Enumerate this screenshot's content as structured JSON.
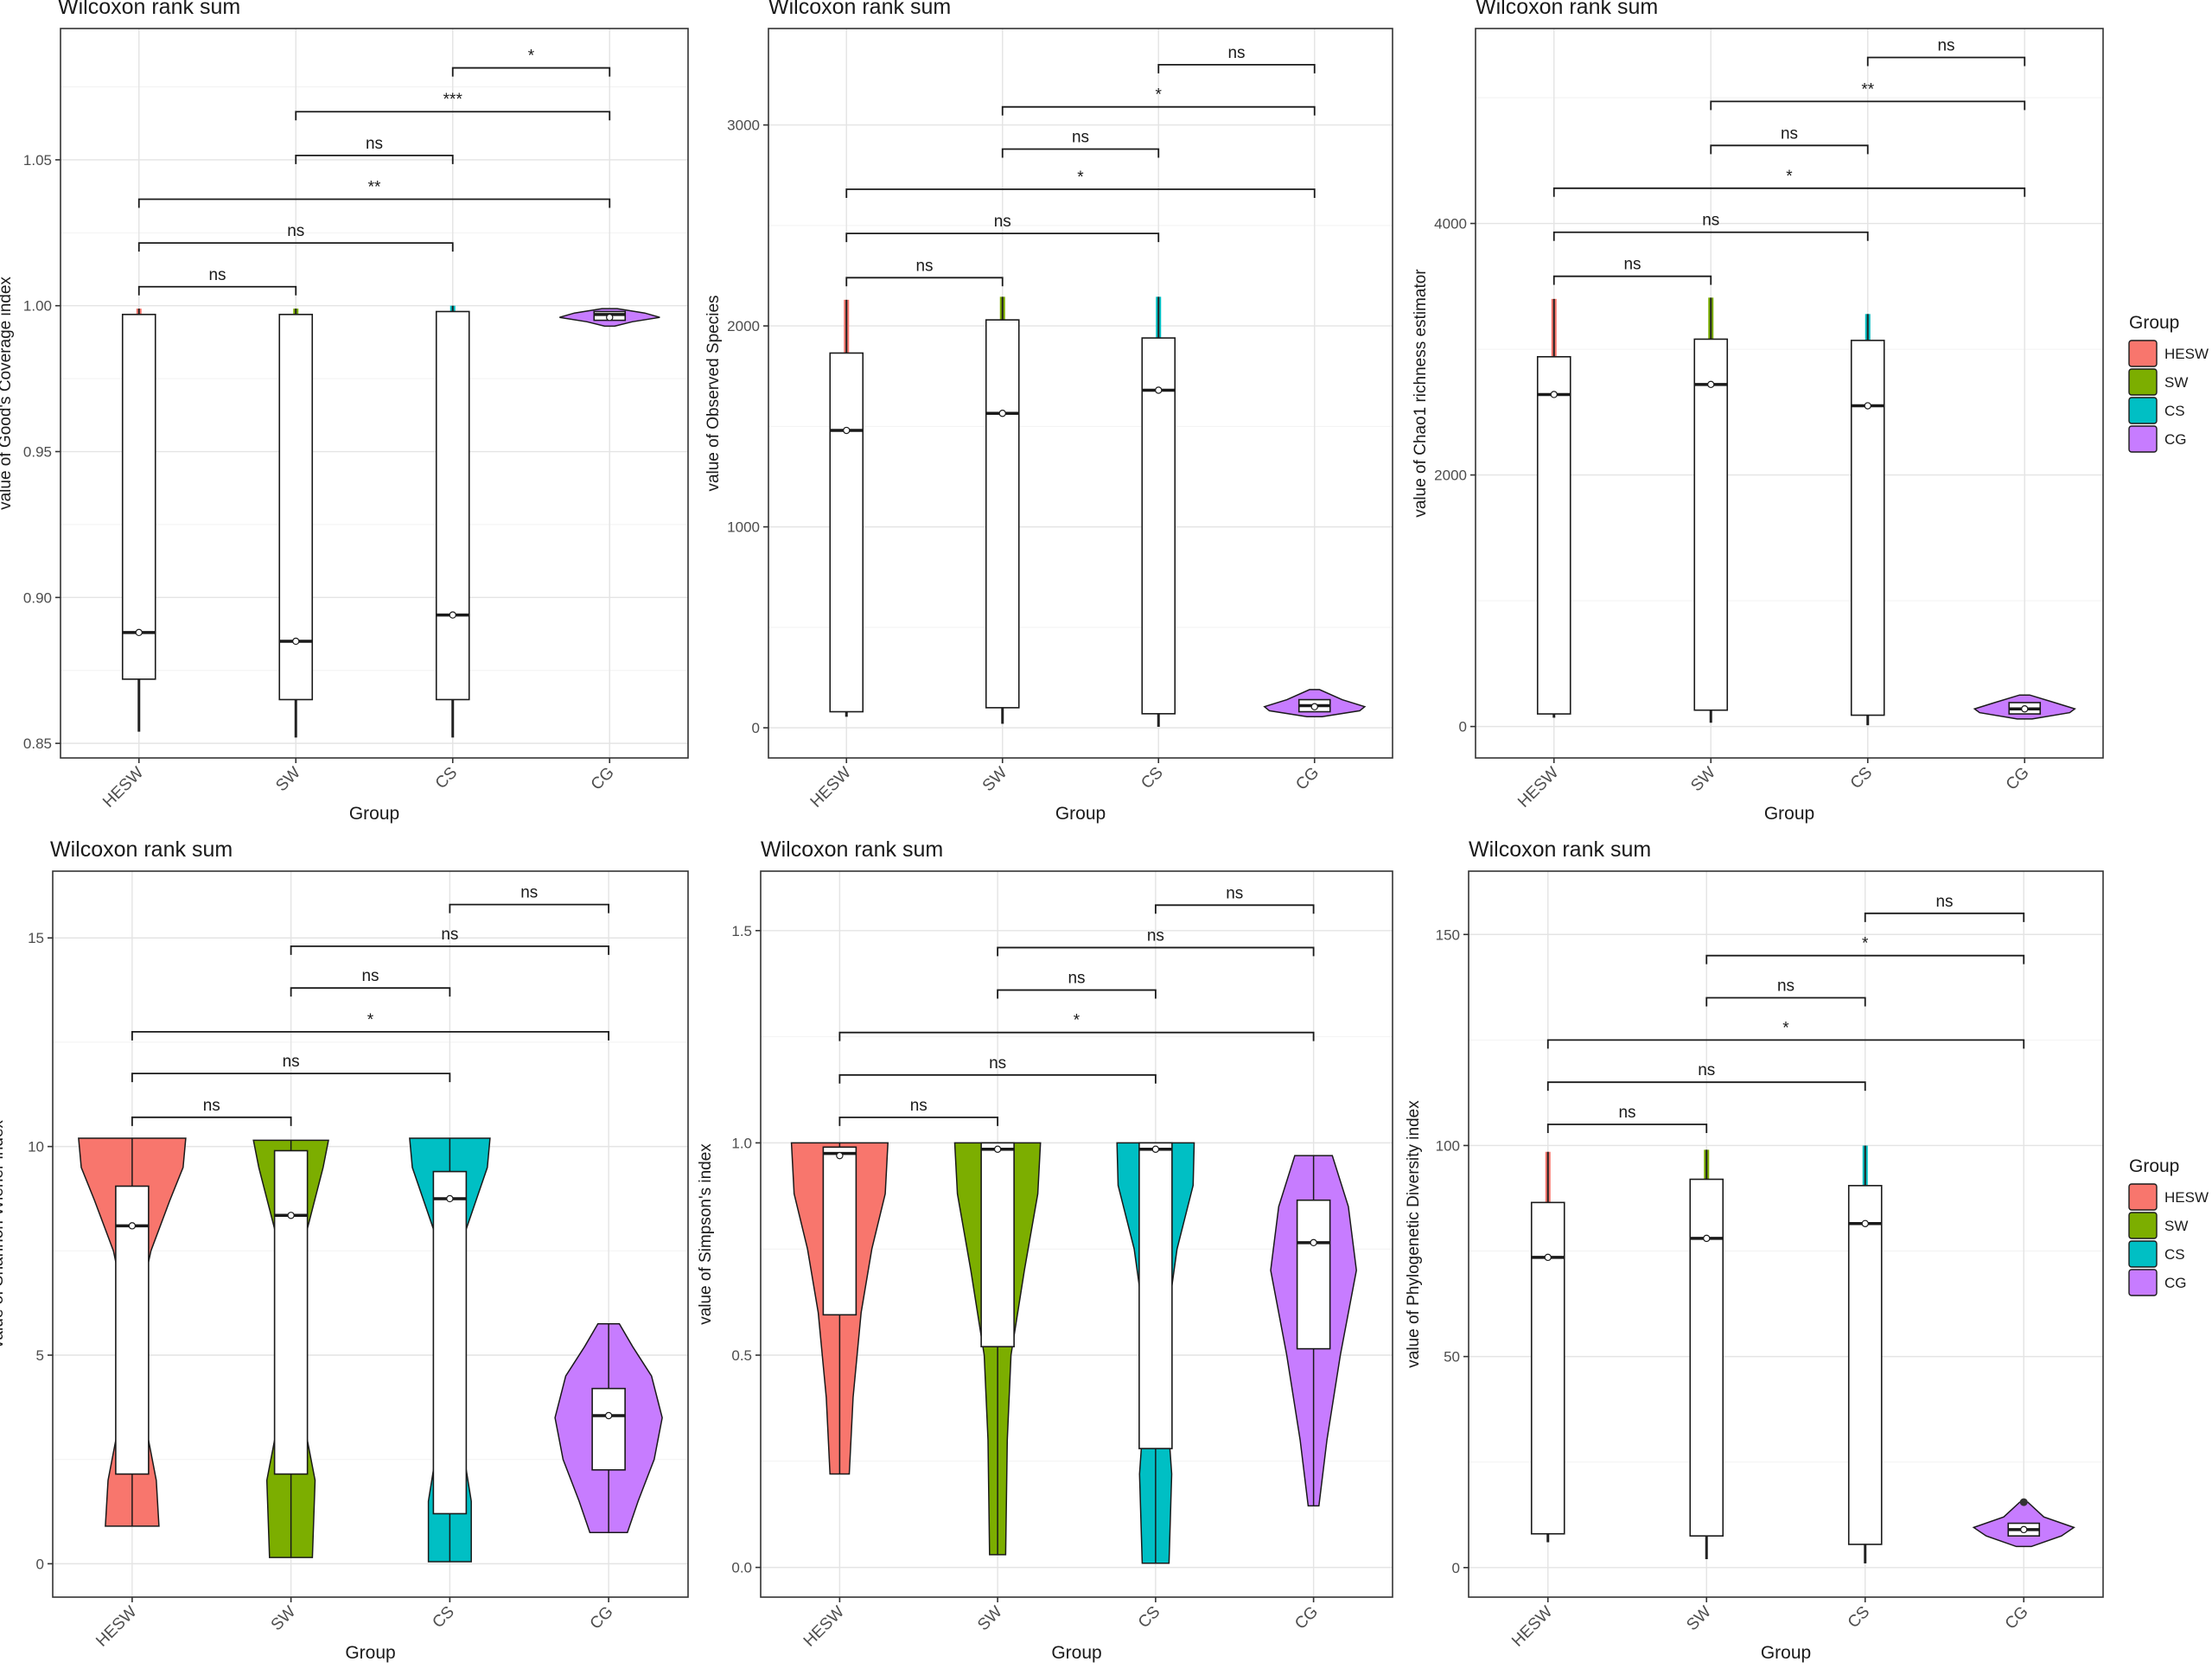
{
  "colors": {
    "HESW": "#F8766D",
    "SW": "#7CAE00",
    "CS": "#00BFC4",
    "CG": "#C77CFF"
  },
  "legend_title": "Group",
  "legend_items": [
    "HESW",
    "SW",
    "CS",
    "CG"
  ],
  "chart_data": [
    {
      "type": "box-violin",
      "title": "Wilcoxon rank sum",
      "xlabel": "Group",
      "ylabel": "value of Good's Coverage index",
      "categories": [
        "HESW",
        "SW",
        "CS",
        "CG"
      ],
      "ylim": [
        0.845,
        1.095
      ],
      "yticks": [
        0.85,
        0.9,
        0.95,
        1.0,
        1.05
      ],
      "ydigits": 2,
      "violin": false,
      "grid": true,
      "legend": "none",
      "groups": [
        {
          "name": "HESW",
          "min": 0.854,
          "q1": 0.872,
          "median": 0.888,
          "q3": 0.997,
          "max": 0.999,
          "mean": 0.888
        },
        {
          "name": "SW",
          "min": 0.852,
          "q1": 0.865,
          "median": 0.885,
          "q3": 0.997,
          "max": 0.999,
          "mean": 0.885
        },
        {
          "name": "CS",
          "min": 0.852,
          "q1": 0.865,
          "median": 0.894,
          "q3": 0.998,
          "max": 1.0,
          "mean": 0.894
        },
        {
          "name": "CG",
          "min": 0.993,
          "q1": 0.995,
          "median": 0.997,
          "q3": 0.998,
          "max": 0.999,
          "mean": 0.996,
          "violin": [
            [
              0.993,
              0.1
            ],
            [
              0.9945,
              0.45
            ],
            [
              0.996,
              1.0
            ],
            [
              0.9975,
              0.7
            ],
            [
              0.999,
              0.15
            ]
          ]
        }
      ],
      "comparisons": [
        {
          "a": 0,
          "b": 1,
          "label": "ns",
          "y": 1.0065
        },
        {
          "a": 0,
          "b": 2,
          "label": "ns",
          "y": 1.0215
        },
        {
          "a": 0,
          "b": 3,
          "label": "**",
          "y": 1.0365
        },
        {
          "a": 1,
          "b": 2,
          "label": "ns",
          "y": 1.0515
        },
        {
          "a": 1,
          "b": 3,
          "label": "***",
          "y": 1.0665
        },
        {
          "a": 2,
          "b": 3,
          "label": "*",
          "y": 1.0815
        }
      ]
    },
    {
      "type": "box-violin",
      "title": "Wilcoxon rank sum",
      "xlabel": "Group",
      "ylabel": "value of Observed Species",
      "categories": [
        "HESW",
        "SW",
        "CS",
        "CG"
      ],
      "ylim": [
        -150,
        3480
      ],
      "yticks": [
        0,
        1000,
        2000,
        3000
      ],
      "ydigits": 0,
      "violin": false,
      "grid": true,
      "legend": "none",
      "groups": [
        {
          "name": "HESW",
          "min": 55,
          "q1": 80,
          "median": 1480,
          "q3": 1865,
          "max": 2130,
          "mean": 1480
        },
        {
          "name": "SW",
          "min": 20,
          "q1": 100,
          "median": 1565,
          "q3": 2030,
          "max": 2145,
          "mean": 1565
        },
        {
          "name": "CS",
          "min": 5,
          "q1": 70,
          "median": 1680,
          "q3": 1940,
          "max": 2145,
          "mean": 1680
        },
        {
          "name": "CG",
          "min": 60,
          "q1": 80,
          "median": 110,
          "q3": 140,
          "max": 190,
          "mean": 105,
          "violin": [
            [
              55,
              0.15
            ],
            [
              85,
              0.9
            ],
            [
              105,
              1.0
            ],
            [
              140,
              0.55
            ],
            [
              190,
              0.1
            ]
          ]
        }
      ],
      "comparisons": [
        {
          "a": 0,
          "b": 1,
          "label": "ns",
          "y": 2240
        },
        {
          "a": 0,
          "b": 2,
          "label": "ns",
          "y": 2460
        },
        {
          "a": 0,
          "b": 3,
          "label": "*",
          "y": 2680
        },
        {
          "a": 1,
          "b": 2,
          "label": "ns",
          "y": 2880
        },
        {
          "a": 1,
          "b": 3,
          "label": "*",
          "y": 3090
        },
        {
          "a": 2,
          "b": 3,
          "label": "ns",
          "y": 3300
        }
      ]
    },
    {
      "type": "box-violin",
      "title": "Wilcoxon rank sum",
      "xlabel": "Group",
      "ylabel": "value of Chao1 richness estimator",
      "categories": [
        "HESW",
        "SW",
        "CS",
        "CG"
      ],
      "ylim": [
        -250,
        5550
      ],
      "yticks": [
        0,
        2000,
        4000
      ],
      "ydigits": 0,
      "violin": false,
      "grid": true,
      "legend": "right",
      "groups": [
        {
          "name": "HESW",
          "min": 70,
          "q1": 100,
          "median": 2640,
          "q3": 2940,
          "max": 3400,
          "mean": 2640
        },
        {
          "name": "SW",
          "min": 30,
          "q1": 130,
          "median": 2720,
          "q3": 3080,
          "max": 3410,
          "mean": 2720
        },
        {
          "name": "CS",
          "min": 10,
          "q1": 90,
          "median": 2550,
          "q3": 3070,
          "max": 3280,
          "mean": 2550
        },
        {
          "name": "CG",
          "min": 60,
          "q1": 100,
          "median": 140,
          "q3": 190,
          "max": 250,
          "mean": 140,
          "violin": [
            [
              60,
              0.15
            ],
            [
              110,
              0.9
            ],
            [
              140,
              1.0
            ],
            [
              190,
              0.6
            ],
            [
              250,
              0.1
            ]
          ]
        }
      ],
      "comparisons": [
        {
          "a": 0,
          "b": 1,
          "label": "ns",
          "y": 3580
        },
        {
          "a": 0,
          "b": 2,
          "label": "ns",
          "y": 3930
        },
        {
          "a": 0,
          "b": 3,
          "label": "*",
          "y": 4280
        },
        {
          "a": 1,
          "b": 2,
          "label": "ns",
          "y": 4620
        },
        {
          "a": 1,
          "b": 3,
          "label": "**",
          "y": 4970
        },
        {
          "a": 2,
          "b": 3,
          "label": "ns",
          "y": 5320
        }
      ]
    },
    {
      "type": "box-violin",
      "title": "Wilcoxon rank sum",
      "xlabel": "Group",
      "ylabel": "value of Shannon Wiener index",
      "categories": [
        "HESW",
        "SW",
        "CS",
        "CG"
      ],
      "ylim": [
        -0.8,
        16.6
      ],
      "yticks": [
        0,
        5,
        10,
        15
      ],
      "ydigits": 0,
      "violin": true,
      "grid": true,
      "legend": "none",
      "groups": [
        {
          "name": "HESW",
          "min": 0.9,
          "q1": 2.15,
          "median": 8.1,
          "q3": 9.05,
          "max": 10.2,
          "mean": 8.1,
          "violin": [
            [
              0.9,
              0.5
            ],
            [
              2.0,
              0.45
            ],
            [
              4.0,
              0.15
            ],
            [
              6.0,
              0.1
            ],
            [
              7.5,
              0.35
            ],
            [
              8.7,
              0.7
            ],
            [
              9.5,
              0.95
            ],
            [
              10.2,
              1.0
            ]
          ]
        },
        {
          "name": "SW",
          "min": 0.15,
          "q1": 2.15,
          "median": 8.35,
          "q3": 9.9,
          "max": 10.15,
          "mean": 8.35,
          "violin": [
            [
              0.15,
              0.4
            ],
            [
              2.0,
              0.45
            ],
            [
              4.0,
              0.15
            ],
            [
              6.0,
              0.12
            ],
            [
              8.0,
              0.3
            ],
            [
              9.5,
              0.6
            ],
            [
              10.15,
              0.7
            ]
          ]
        },
        {
          "name": "CS",
          "min": 0.05,
          "q1": 1.2,
          "median": 8.75,
          "q3": 9.4,
          "max": 10.2,
          "mean": 8.75,
          "violin": [
            [
              0.05,
              0.4
            ],
            [
              1.5,
              0.4
            ],
            [
              3.5,
              0.15
            ],
            [
              6.0,
              0.1
            ],
            [
              8.0,
              0.3
            ],
            [
              9.5,
              0.7
            ],
            [
              10.2,
              0.75
            ]
          ]
        },
        {
          "name": "CG",
          "min": 0.75,
          "q1": 2.25,
          "median": 3.55,
          "q3": 4.2,
          "max": 5.75,
          "mean": 3.55,
          "violin": [
            [
              0.75,
              0.35
            ],
            [
              1.5,
              0.55
            ],
            [
              2.5,
              0.85
            ],
            [
              3.5,
              1.0
            ],
            [
              4.5,
              0.8
            ],
            [
              5.2,
              0.45
            ],
            [
              5.75,
              0.2
            ]
          ]
        }
      ],
      "comparisons": [
        {
          "a": 0,
          "b": 1,
          "label": "ns",
          "y": 10.7
        },
        {
          "a": 0,
          "b": 2,
          "label": "ns",
          "y": 11.75
        },
        {
          "a": 0,
          "b": 3,
          "label": "*",
          "y": 12.75
        },
        {
          "a": 1,
          "b": 2,
          "label": "ns",
          "y": 13.8
        },
        {
          "a": 1,
          "b": 3,
          "label": "ns",
          "y": 14.8
        },
        {
          "a": 2,
          "b": 3,
          "label": "ns",
          "y": 15.8
        }
      ]
    },
    {
      "type": "box-violin",
      "title": "Wilcoxon rank sum",
      "xlabel": "Group",
      "ylabel": "value of Simpson's index",
      "categories": [
        "HESW",
        "SW",
        "CS",
        "CG"
      ],
      "ylim": [
        -0.07,
        1.64
      ],
      "yticks": [
        0.0,
        0.5,
        1.0,
        1.5
      ],
      "ydigits": 1,
      "violin": true,
      "grid": true,
      "legend": "none",
      "groups": [
        {
          "name": "HESW",
          "min": 0.22,
          "q1": 0.595,
          "median": 0.975,
          "q3": 0.99,
          "max": 1.0,
          "mean": 0.97,
          "violin": [
            [
              0.22,
              0.18
            ],
            [
              0.4,
              0.25
            ],
            [
              0.6,
              0.4
            ],
            [
              0.75,
              0.6
            ],
            [
              0.88,
              0.85
            ],
            [
              1.0,
              0.9
            ]
          ]
        },
        {
          "name": "SW",
          "min": 0.03,
          "q1": 0.52,
          "median": 0.985,
          "q3": 1.0,
          "max": 1.0,
          "mean": 0.985,
          "violin": [
            [
              0.03,
              0.15
            ],
            [
              0.3,
              0.18
            ],
            [
              0.5,
              0.25
            ],
            [
              0.7,
              0.5
            ],
            [
              0.88,
              0.75
            ],
            [
              1.0,
              0.8
            ]
          ]
        },
        {
          "name": "CS",
          "min": 0.01,
          "q1": 0.28,
          "median": 0.985,
          "q3": 1.0,
          "max": 1.0,
          "mean": 0.985,
          "violin": [
            [
              0.01,
              0.25
            ],
            [
              0.22,
              0.3
            ],
            [
              0.4,
              0.2
            ],
            [
              0.55,
              0.18
            ],
            [
              0.75,
              0.4
            ],
            [
              0.9,
              0.7
            ],
            [
              1.0,
              0.72
            ]
          ]
        },
        {
          "name": "CG",
          "min": 0.145,
          "q1": 0.515,
          "median": 0.765,
          "q3": 0.865,
          "max": 0.97,
          "mean": 0.765,
          "violin": [
            [
              0.145,
              0.1
            ],
            [
              0.3,
              0.25
            ],
            [
              0.5,
              0.5
            ],
            [
              0.7,
              0.8
            ],
            [
              0.85,
              0.65
            ],
            [
              0.97,
              0.35
            ]
          ]
        }
      ],
      "comparisons": [
        {
          "a": 0,
          "b": 1,
          "label": "ns",
          "y": 1.06
        },
        {
          "a": 0,
          "b": 2,
          "label": "ns",
          "y": 1.16
        },
        {
          "a": 0,
          "b": 3,
          "label": "*",
          "y": 1.26
        },
        {
          "a": 1,
          "b": 2,
          "label": "ns",
          "y": 1.36
        },
        {
          "a": 1,
          "b": 3,
          "label": "ns",
          "y": 1.46
        },
        {
          "a": 2,
          "b": 3,
          "label": "ns",
          "y": 1.56
        }
      ]
    },
    {
      "type": "box-violin",
      "title": "Wilcoxon rank sum",
      "xlabel": "Group",
      "ylabel": "value of Phylogenetic Diversity index",
      "categories": [
        "HESW",
        "SW",
        "CS",
        "CG"
      ],
      "ylim": [
        -7,
        165
      ],
      "yticks": [
        0,
        50,
        100,
        150
      ],
      "ydigits": 0,
      "violin": false,
      "grid": true,
      "legend": "right",
      "groups": [
        {
          "name": "HESW",
          "min": 6,
          "q1": 8,
          "median": 73.5,
          "q3": 86.5,
          "max": 98.5,
          "mean": 73.5
        },
        {
          "name": "SW",
          "min": 2,
          "q1": 7.5,
          "median": 78,
          "q3": 92,
          "max": 99,
          "mean": 78
        },
        {
          "name": "CS",
          "min": 1,
          "q1": 5.5,
          "median": 81.5,
          "q3": 90.5,
          "max": 100,
          "mean": 81.5
        },
        {
          "name": "CG",
          "min": 5,
          "q1": 7.5,
          "median": 9,
          "q3": 10.5,
          "max": 15.5,
          "mean": 9,
          "outlier": 15.5,
          "violin": [
            [
              5,
              0.15
            ],
            [
              7.5,
              0.75
            ],
            [
              9.5,
              1.0
            ],
            [
              12,
              0.4
            ],
            [
              15.5,
              0.08
            ]
          ]
        }
      ],
      "comparisons": [
        {
          "a": 0,
          "b": 1,
          "label": "ns",
          "y": 105
        },
        {
          "a": 0,
          "b": 2,
          "label": "ns",
          "y": 115
        },
        {
          "a": 0,
          "b": 3,
          "label": "*",
          "y": 125
        },
        {
          "a": 1,
          "b": 2,
          "label": "ns",
          "y": 135
        },
        {
          "a": 1,
          "b": 3,
          "label": "*",
          "y": 145
        },
        {
          "a": 2,
          "b": 3,
          "label": "ns",
          "y": 155
        }
      ]
    }
  ]
}
